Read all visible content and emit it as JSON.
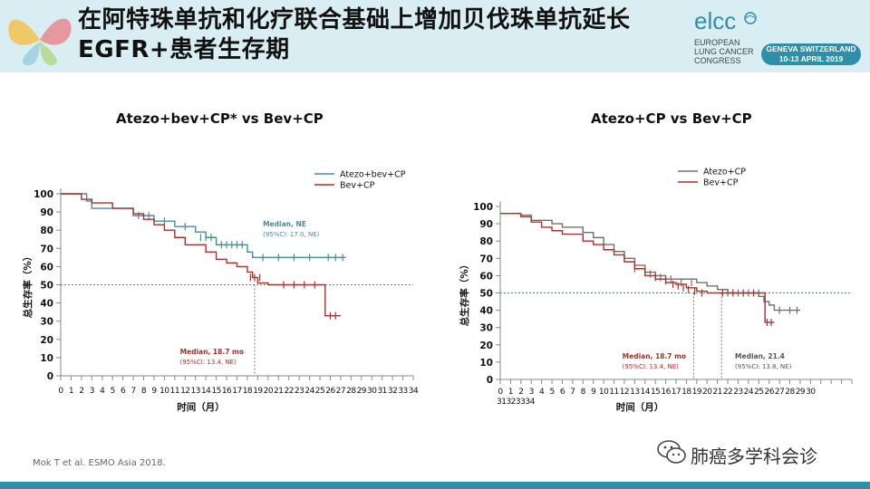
{
  "header": {
    "title": "在阿特珠单抗和化疗联合基础上增加贝伐珠单抗延长EGFR+患者生存期",
    "logo_word": "elcc",
    "logo_lines": [
      "EUROPEAN",
      "LUNG CANCER",
      "CONGRESS"
    ],
    "logo_badge": [
      "GENEVA SWITZERLAND",
      "10-13 APRIL 2019"
    ]
  },
  "citation": "Mok T et al. ESMO Asia 2018.",
  "watermark": "肺癌多学科会诊",
  "colors": {
    "teal": "#4a8aa0",
    "red": "#a8322a",
    "gray": "#707070",
    "header_bg": "#d9eef3",
    "accent": "#2f8fa8"
  },
  "chart_data": [
    {
      "type": "line",
      "title": "Atezo+bev+CP* vs Bev+CP",
      "xlabel": "时间（月）",
      "ylabel": "总生存率（%）",
      "xlim": [
        0,
        34
      ],
      "ylim": [
        0,
        100
      ],
      "xticks": [
        0,
        1,
        2,
        3,
        4,
        5,
        6,
        7,
        8,
        9,
        10,
        11,
        12,
        13,
        14,
        15,
        16,
        17,
        18,
        19,
        20,
        21,
        22,
        23,
        24,
        25,
        26,
        27,
        28,
        29,
        30,
        31,
        32,
        33,
        34
      ],
      "xtick_labels": [
        "0",
        "1",
        "2",
        "3",
        "4",
        "5",
        "6",
        "7",
        "8",
        "9",
        "10",
        "11",
        "12",
        "13",
        "14",
        "15",
        "16",
        "17",
        "18",
        "19",
        "20",
        "21",
        "22",
        "23",
        "24",
        "25",
        "26",
        "27",
        "28",
        "29",
        "30",
        "31",
        "32",
        "33",
        "34"
      ],
      "yticks": [
        0,
        10,
        20,
        30,
        40,
        50,
        60,
        70,
        80,
        90,
        100
      ],
      "reference_y": 50,
      "legend": "top-right",
      "series": [
        {
          "name": "Atezo+bev+CP",
          "color": "#4a8aa0",
          "steps": [
            [
              0,
              100
            ],
            [
              2.5,
              96
            ],
            [
              3,
              92
            ],
            [
              7,
              88
            ],
            [
              9,
              85
            ],
            [
              11,
              82
            ],
            [
              13,
              79
            ],
            [
              14,
              76
            ],
            [
              15,
              72
            ],
            [
              18,
              68
            ],
            [
              18.5,
              65
            ],
            [
              27.5,
              65
            ]
          ],
          "censors": [
            [
              7.5,
              88
            ],
            [
              8.5,
              88
            ],
            [
              10,
              85
            ],
            [
              12,
              82
            ],
            [
              13.5,
              76
            ],
            [
              14,
              76
            ],
            [
              14.5,
              76
            ],
            [
              15.5,
              72
            ],
            [
              16,
              72
            ],
            [
              16.5,
              72
            ],
            [
              17,
              72
            ],
            [
              17.5,
              72
            ],
            [
              19.5,
              65
            ],
            [
              21,
              65
            ],
            [
              22.5,
              65
            ],
            [
              24,
              65
            ],
            [
              25.8,
              65
            ],
            [
              26.5,
              65
            ],
            [
              27.2,
              65
            ]
          ]
        },
        {
          "name": "Bev+CP",
          "color": "#a8322a",
          "steps": [
            [
              0,
              100
            ],
            [
              2,
              97
            ],
            [
              3,
              95
            ],
            [
              5,
              92
            ],
            [
              7,
              89
            ],
            [
              8,
              86
            ],
            [
              9,
              83
            ],
            [
              10,
              80
            ],
            [
              11,
              76
            ],
            [
              12,
              72
            ],
            [
              14,
              68
            ],
            [
              15,
              64
            ],
            [
              16,
              62
            ],
            [
              17,
              60
            ],
            [
              18,
              57
            ],
            [
              18.5,
              54
            ],
            [
              19,
              51
            ],
            [
              20,
              50
            ],
            [
              25,
              50
            ],
            [
              25.5,
              33
            ],
            [
              27,
              33
            ]
          ],
          "censors": [
            [
              18.3,
              54
            ],
            [
              18.7,
              54
            ],
            [
              19.2,
              54
            ],
            [
              21.5,
              50
            ],
            [
              22.5,
              50
            ],
            [
              23.5,
              50
            ],
            [
              24.5,
              50
            ],
            [
              26,
              33
            ],
            [
              26.5,
              33
            ]
          ]
        }
      ],
      "annotations": [
        {
          "text": [
            "Median, NE",
            "(95%CI: 17.0, NE)"
          ],
          "color": "#4a8aa0",
          "x": 19.5,
          "y": 82
        },
        {
          "text": [
            "Median, 18.7 mo",
            "(95%CI: 13.4, NE)"
          ],
          "color": "#a8322a",
          "x": 11.5,
          "y": 12
        }
      ],
      "median_markers": [
        18.7
      ]
    },
    {
      "type": "line",
      "title": "Atezo+CP vs Bev+CP",
      "xlabel": "时间（月）",
      "ylabel": "总生存率（%）",
      "xlim": [
        0,
        34
      ],
      "ylim": [
        0,
        100
      ],
      "xticks": [
        0,
        1,
        2,
        3,
        4,
        5,
        6,
        7,
        8,
        9,
        10,
        11,
        12,
        13,
        14,
        15,
        16,
        17,
        18,
        19,
        20,
        21,
        22,
        23,
        24,
        25,
        26,
        27,
        28,
        29,
        30,
        31,
        32,
        33,
        34
      ],
      "xtick_labels_row1": [
        "0",
        "1",
        "2",
        "3",
        "4",
        "5",
        "6",
        "7",
        "8",
        "9",
        "10",
        "11",
        "12",
        "13",
        "14",
        "15",
        "16",
        "17",
        "18",
        "19",
        "20",
        "21",
        "22",
        "23",
        "24",
        "25",
        "26",
        "27",
        "28",
        "29",
        "30"
      ],
      "xtick_labels_row2": "31323334",
      "yticks": [
        0,
        10,
        20,
        30,
        40,
        50,
        60,
        70,
        80,
        90,
        100
      ],
      "reference_y": 50,
      "legend": "top-right",
      "series": [
        {
          "name": "Atezo+CP",
          "color": "#707070",
          "steps": [
            [
              0,
              96
            ],
            [
              2,
              95
            ],
            [
              3,
              92
            ],
            [
              5,
              90
            ],
            [
              6,
              88
            ],
            [
              8,
              85
            ],
            [
              9,
              82
            ],
            [
              10,
              78
            ],
            [
              11,
              74
            ],
            [
              12,
              70
            ],
            [
              13,
              66
            ],
            [
              14,
              62
            ],
            [
              15,
              60
            ],
            [
              16,
              58
            ],
            [
              19,
              56
            ],
            [
              20,
              54
            ],
            [
              21,
              52
            ],
            [
              22,
              50
            ],
            [
              25,
              48
            ],
            [
              25.5,
              45
            ],
            [
              26,
              43
            ],
            [
              26.5,
              40
            ],
            [
              29,
              40
            ]
          ],
          "censors": [
            [
              13,
              64
            ],
            [
              14.5,
              61
            ],
            [
              15.5,
              59
            ],
            [
              16.5,
              58
            ],
            [
              17.5,
              56
            ],
            [
              18.5,
              56
            ],
            [
              22,
              50
            ],
            [
              23,
              50
            ],
            [
              24,
              50
            ],
            [
              25,
              50
            ],
            [
              27,
              40
            ],
            [
              28,
              40
            ],
            [
              28.7,
              40
            ]
          ]
        },
        {
          "name": "Bev+CP",
          "color": "#a8322a",
          "steps": [
            [
              0,
              96
            ],
            [
              2,
              94
            ],
            [
              3,
              91
            ],
            [
              4,
              88
            ],
            [
              5,
              86
            ],
            [
              6,
              84
            ],
            [
              8,
              80
            ],
            [
              9,
              78
            ],
            [
              10,
              75
            ],
            [
              11,
              72
            ],
            [
              12,
              68
            ],
            [
              13,
              64
            ],
            [
              14,
              60
            ],
            [
              15,
              58
            ],
            [
              16,
              56
            ],
            [
              17,
              55
            ],
            [
              18,
              53
            ],
            [
              19,
              51
            ],
            [
              20,
              50
            ],
            [
              25.5,
              50
            ],
            [
              25.6,
              33
            ],
            [
              26.5,
              33
            ]
          ],
          "censors": [
            [
              15,
              59
            ],
            [
              16,
              57
            ],
            [
              16.7,
              55
            ],
            [
              17.2,
              54
            ],
            [
              17.7,
              53
            ],
            [
              18.2,
              52
            ],
            [
              18.8,
              51
            ],
            [
              19.5,
              50
            ],
            [
              21.5,
              50
            ],
            [
              22.5,
              50
            ],
            [
              23.5,
              50
            ],
            [
              24.5,
              50
            ],
            [
              25.8,
              33
            ],
            [
              26.2,
              33
            ]
          ]
        }
      ],
      "annotations": [
        {
          "text": [
            "Median, 18.7 mo",
            "(95%CI: 13.4, NE)"
          ],
          "color": "#a8322a",
          "x": 11.8,
          "y": 12
        },
        {
          "text": [
            "Median, 21.4",
            "(95%CI: 13.8, NE)"
          ],
          "color": "#555555",
          "x": 22.7,
          "y": 12
        }
      ],
      "median_markers": [
        18.7,
        21.4
      ]
    }
  ]
}
